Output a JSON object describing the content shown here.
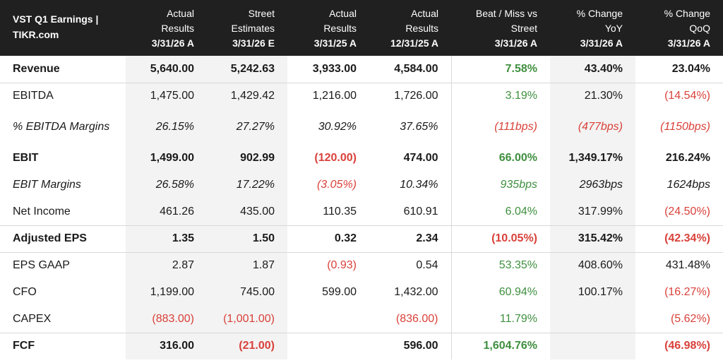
{
  "title": "VST Q1 Earnings | TIKR.com",
  "columns": [
    {
      "line1": "Actual",
      "line2": "Results",
      "date": "3/31/26 A"
    },
    {
      "line1": "Street",
      "line2": "Estimates",
      "date": "3/31/26 E"
    },
    {
      "line1": "Actual",
      "line2": "Results",
      "date": "3/31/25 A"
    },
    {
      "line1": "Actual",
      "line2": "Results",
      "date": "12/31/25 A"
    },
    {
      "line1": "Beat / Miss vs",
      "line2": "Street",
      "date": "3/31/26 A"
    },
    {
      "line1": "% Change",
      "line2": "YoY",
      "date": "3/31/26 A"
    },
    {
      "line1": "% Change",
      "line2": "QoQ",
      "date": "3/31/26 A"
    }
  ],
  "rows": [
    {
      "label": "Revenue",
      "cells": [
        "5,640.00",
        "5,242.63",
        "3,933.00",
        "4,584.00",
        "7.58%",
        "43.40%",
        "23.04%"
      ]
    },
    {
      "label": "EBITDA",
      "cells": [
        "1,475.00",
        "1,429.42",
        "1,216.00",
        "1,726.00",
        "3.19%",
        "21.30%",
        "(14.54%)"
      ]
    },
    {
      "label": "% EBITDA Margins",
      "cells": [
        "26.15%",
        "27.27%",
        "30.92%",
        "37.65%",
        "(111bps)",
        "(477bps)",
        "(1150bps)"
      ]
    },
    {
      "label": "EBIT",
      "cells": [
        "1,499.00",
        "902.99",
        "(120.00)",
        "474.00",
        "66.00%",
        "1,349.17%",
        "216.24%"
      ]
    },
    {
      "label": "EBIT Margins",
      "cells": [
        "26.58%",
        "17.22%",
        "(3.05%)",
        "10.34%",
        "935bps",
        "2963bps",
        "1624bps"
      ]
    },
    {
      "label": "Net Income",
      "cells": [
        "461.26",
        "435.00",
        "110.35",
        "610.91",
        "6.04%",
        "317.99%",
        "(24.50%)"
      ]
    },
    {
      "label": "Adjusted EPS",
      "cells": [
        "1.35",
        "1.50",
        "0.32",
        "2.34",
        "(10.05%)",
        "315.42%",
        "(42.34%)"
      ]
    },
    {
      "label": "EPS GAAP",
      "cells": [
        "2.87",
        "1.87",
        "(0.93)",
        "0.54",
        "53.35%",
        "408.60%",
        "431.48%"
      ]
    },
    {
      "label": "CFO",
      "cells": [
        "1,199.00",
        "745.00",
        "599.00",
        "1,432.00",
        "60.94%",
        "100.17%",
        "(16.27%)"
      ]
    },
    {
      "label": "CAPEX",
      "cells": [
        "(883.00)",
        "(1,001.00)",
        "",
        "(836.00)",
        "11.79%",
        "",
        "(5.62%)"
      ]
    },
    {
      "label": "FCF",
      "cells": [
        "316.00",
        "(21.00)",
        "",
        "596.00",
        "1,604.76%",
        "",
        "(46.98%)"
      ]
    }
  ],
  "colors": {
    "header_bg": "#202020",
    "positive": "#3f8f3f",
    "negative": "#d9413a",
    "shade": "#f3f3f3"
  }
}
